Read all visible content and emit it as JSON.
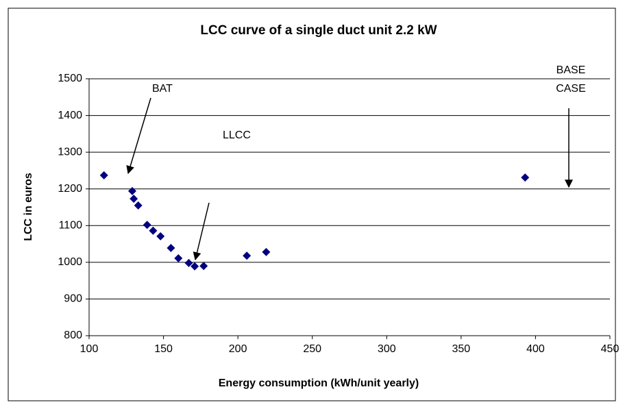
{
  "chart_data": {
    "type": "scatter",
    "title": "LCC curve of a single duct unit 2.2 kW",
    "xlabel": "Energy consumption (kWh/unit yearly)",
    "ylabel": "LCC in euros",
    "series": [
      {
        "color": "#000080",
        "x": [
          110,
          129,
          130,
          133,
          139,
          143,
          148,
          155,
          160,
          167,
          171,
          177,
          206,
          219,
          393
        ],
        "values": [
          1237,
          1194,
          1173,
          1155,
          1102,
          1086,
          1071,
          1039,
          1011,
          998,
          989,
          990,
          1018,
          1028,
          1231
        ]
      }
    ],
    "xlim": [
      100,
      450
    ],
    "xticks": [
      100,
      150,
      200,
      250,
      300,
      350,
      400,
      450
    ],
    "ylim": [
      800,
      1500
    ],
    "yticks": [
      800,
      900,
      1000,
      1100,
      1200,
      1300,
      1400,
      1500
    ],
    "grid": true,
    "annotations": {
      "bat": "BAT",
      "llcc": "LLCC",
      "base_case": [
        "BASE",
        "CASE"
      ]
    }
  }
}
